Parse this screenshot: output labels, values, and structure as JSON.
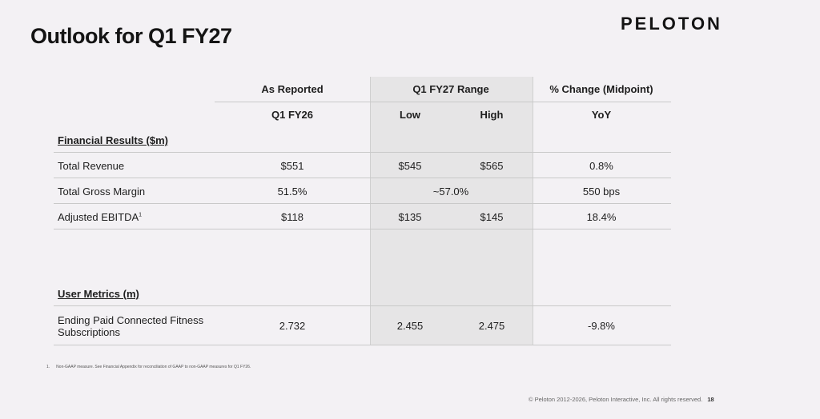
{
  "slide": {
    "title": "Outlook for Q1 FY27",
    "logo": "PELOTON"
  },
  "table": {
    "headers": {
      "as_reported": "As Reported",
      "range": "Q1 FY27 Range",
      "pct_change": "% Change (Midpoint)"
    },
    "subheaders": {
      "period": "Q1 FY26",
      "low": "Low",
      "high": "High",
      "yoy": "YoY"
    },
    "sections": {
      "financial": "Financial Results ($m)",
      "user": "User Metrics (m)"
    },
    "rows": [
      {
        "label": "Total Revenue",
        "reported": "$551",
        "low": "$545",
        "high": "$565",
        "change": "0.8%"
      },
      {
        "label": "Total Gross Margin",
        "reported": "51.5%",
        "range": "~57.0%",
        "change": "550 bps"
      },
      {
        "label": "Adjusted EBITDA",
        "sup": "1",
        "reported": "$118",
        "low": "$135",
        "high": "$145",
        "change": "18.4%"
      },
      {
        "label": "Ending Paid Connected Fitness Subscriptions",
        "reported": "2.732",
        "low": "2.455",
        "high": "2.475",
        "change": "-9.8%"
      }
    ]
  },
  "footnote": {
    "number": "1.",
    "text": "Non-GAAP measure. See Financial Appendix for reconciliation of GAAP to non-GAAP measures for Q1 FY26."
  },
  "footer": {
    "copyright": "© Peloton 2012-2026, Peloton Interactive, Inc. All rights reserved.",
    "page": "18"
  }
}
